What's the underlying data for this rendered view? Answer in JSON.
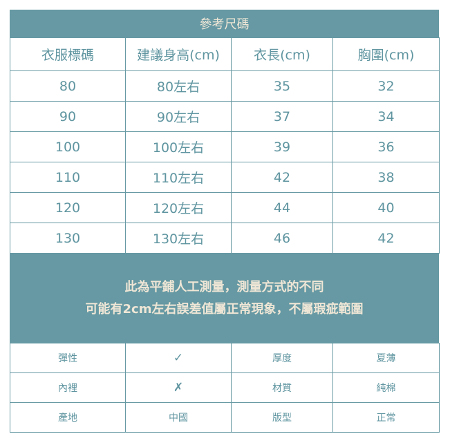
{
  "title": "參考尺碼",
  "headers": [
    "衣服標碼",
    "建議身高(cm)",
    "衣長(cm)",
    "胸圍(cm)"
  ],
  "rows": [
    [
      "80",
      "80左右",
      "35",
      "32"
    ],
    [
      "90",
      "90左右",
      "37",
      "34"
    ],
    [
      "100",
      "100左右",
      "39",
      "36"
    ],
    [
      "110",
      "110左右",
      "42",
      "38"
    ],
    [
      "120",
      "120左右",
      "44",
      "40"
    ],
    [
      "130",
      "130左右",
      "46",
      "42"
    ]
  ],
  "note": [
    "此為平鋪人工測量，測量方式的不同",
    "可能有2cm左右誤差值屬正常現象，不屬瑕疵範圍"
  ],
  "info": [
    [
      "彈性",
      "✓",
      "厚度",
      "夏薄"
    ],
    [
      "內裡",
      "✗",
      "材質",
      "純棉"
    ],
    [
      "產地",
      "中國",
      "版型",
      "正常"
    ]
  ],
  "colors": {
    "accent": "#6699a3",
    "text": "#5f95a0",
    "band_text": "#efe6d6"
  }
}
